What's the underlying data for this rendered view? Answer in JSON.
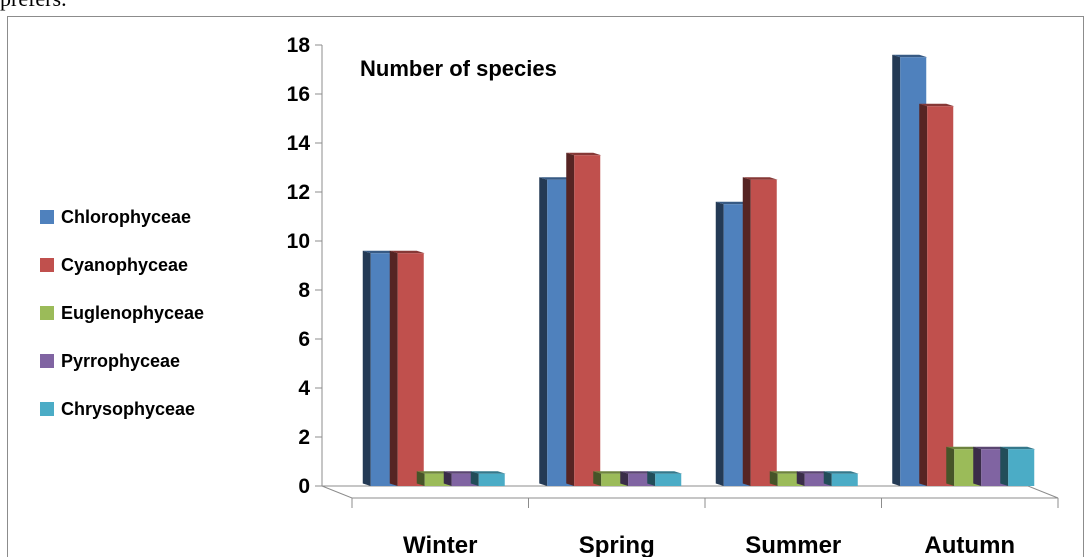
{
  "header": {
    "partial_text": "prefers."
  },
  "chart_data": {
    "type": "bar",
    "title": "Number of species",
    "xlabel": "",
    "ylabel": "",
    "ylim": [
      0,
      18
    ],
    "yticks": [
      0,
      2,
      4,
      6,
      8,
      10,
      12,
      14,
      16,
      18
    ],
    "categories": [
      "Winter",
      "Spring",
      "Summer",
      "Autumn"
    ],
    "legend_position": "left",
    "grid": false,
    "style": "3d-clustered-column",
    "series": [
      {
        "name": "Chlorophyceae",
        "color": "#4F81BD",
        "values": [
          9.5,
          12.5,
          11.5,
          17.5
        ]
      },
      {
        "name": "Cyanophyceae",
        "color": "#C0504D",
        "values": [
          9.5,
          13.5,
          12.5,
          15.5
        ]
      },
      {
        "name": "Euglenophyceae",
        "color": "#9BBB59",
        "values": [
          0.5,
          0.5,
          0.5,
          1.5
        ]
      },
      {
        "name": "Pyrrophyceae",
        "color": "#8064A2",
        "values": [
          0.5,
          0.5,
          0.5,
          1.5
        ]
      },
      {
        "name": "Chrysophyceae",
        "color": "#4BACC6",
        "values": [
          0.5,
          0.5,
          0.5,
          1.5
        ]
      }
    ]
  }
}
